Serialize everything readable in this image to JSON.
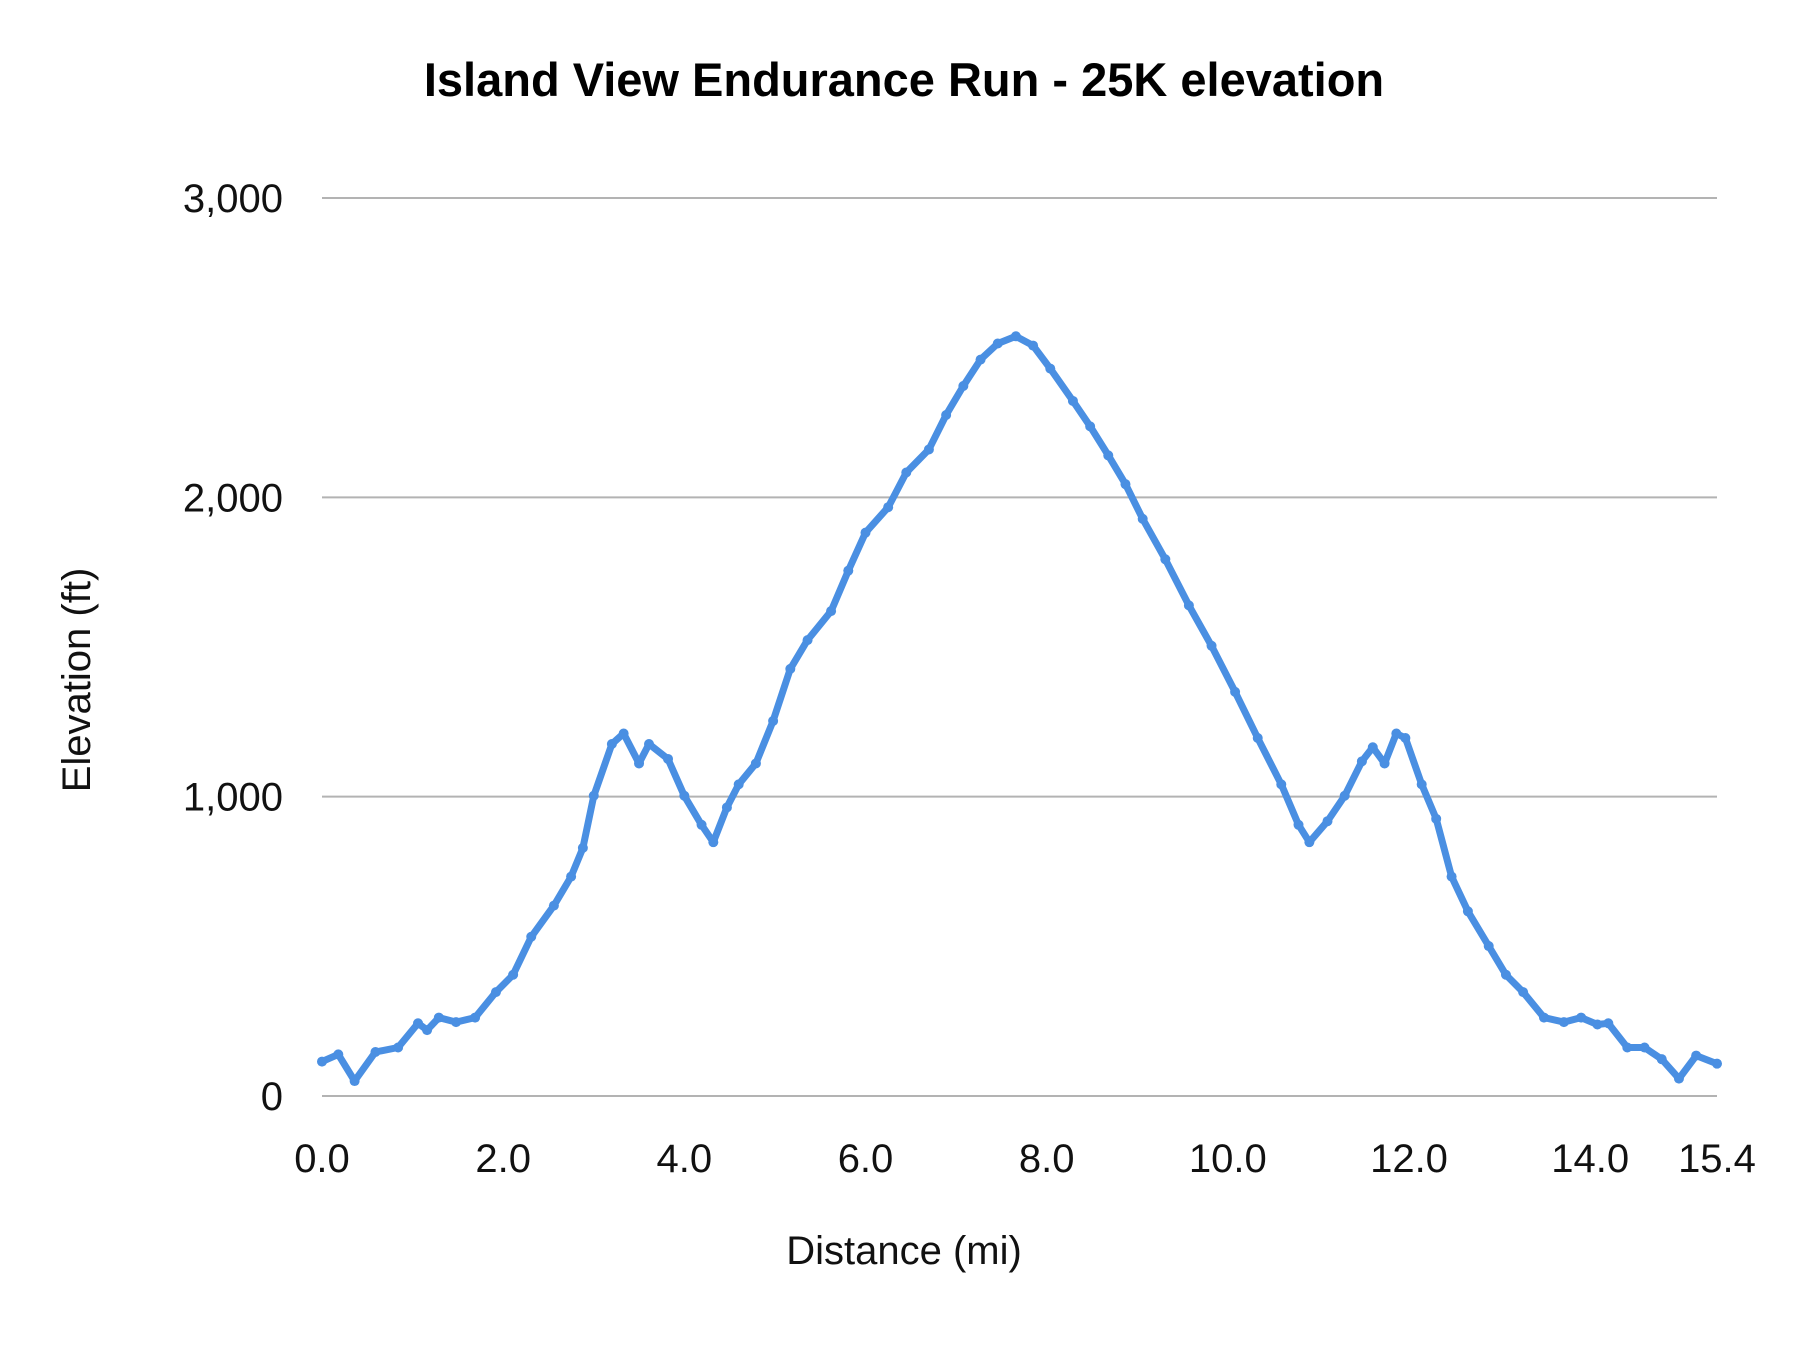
{
  "chart_data": {
    "type": "line",
    "title": "Island View Endurance Run - 25K elevation",
    "xlabel": "Distance (mi)",
    "ylabel": "Elevation (ft)",
    "xlim": [
      0,
      15.4
    ],
    "ylim": [
      0,
      3000
    ],
    "x_ticks": [
      "0.0",
      "2.0",
      "4.0",
      "6.0",
      "8.0",
      "10.0",
      "12.0",
      "14.0",
      "15.4"
    ],
    "x_tick_values": [
      0,
      2,
      4,
      6,
      8,
      10,
      12,
      14,
      15.4
    ],
    "y_ticks": [
      "0",
      "1,000",
      "2,000",
      "3,000"
    ],
    "y_tick_values": [
      0,
      1000,
      2000,
      3000
    ],
    "grid": "horizontal",
    "legend": "none",
    "series_color": "#4a8fe2",
    "series": [
      {
        "x": [
          0,
          0.18,
          0.36,
          0.59,
          0.84,
          1.06,
          1.16,
          1.29,
          1.48,
          1.69,
          1.92,
          2.11,
          2.31,
          2.56,
          2.75,
          2.88,
          3.0,
          3.2,
          3.33,
          3.5,
          3.61,
          3.82,
          4.0,
          4.19,
          4.32,
          4.47,
          4.6,
          4.79,
          4.98,
          5.17,
          5.36,
          5.62,
          5.81,
          6.0,
          6.25,
          6.45,
          6.7,
          6.89,
          7.08,
          7.27,
          7.46,
          7.66,
          7.85,
          8.04,
          8.29,
          8.48,
          8.68,
          8.87,
          9.06,
          9.31,
          9.57,
          9.82,
          10.08,
          10.33,
          10.59,
          10.78,
          10.9,
          11.1,
          11.29,
          11.48,
          11.6,
          11.73,
          11.86,
          11.96,
          12.14,
          12.3,
          12.47,
          12.65,
          12.88,
          13.07,
          13.26,
          13.49,
          13.71,
          13.9,
          14.08,
          14.2,
          14.41,
          14.6,
          14.79,
          14.98,
          15.17,
          15.4
        ],
        "y": [
          115,
          139,
          50,
          147,
          162,
          243,
          220,
          262,
          247,
          262,
          347,
          405,
          532,
          636,
          733,
          829,
          1003,
          1176,
          1211,
          1111,
          1176,
          1126,
          1003,
          906,
          848,
          964,
          1041,
          1111,
          1253,
          1427,
          1523,
          1620,
          1755,
          1882,
          1967,
          2083,
          2160,
          2275,
          2372,
          2460,
          2514,
          2538,
          2507,
          2430,
          2322,
          2237,
          2140,
          2044,
          1928,
          1793,
          1639,
          1504,
          1350,
          1196,
          1041,
          906,
          848,
          918,
          1003,
          1118,
          1165,
          1111,
          1211,
          1196,
          1041,
          926,
          733,
          617,
          501,
          405,
          347,
          262,
          247,
          262,
          239,
          243,
          162,
          162,
          123,
          58,
          135,
          108
        ]
      }
    ]
  }
}
